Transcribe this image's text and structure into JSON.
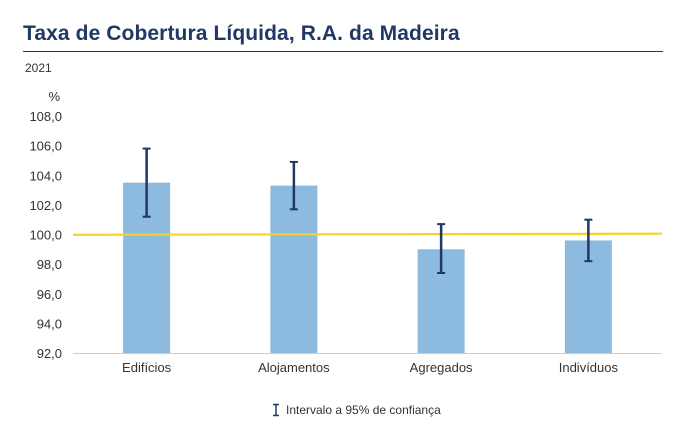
{
  "title": "Taxa de Cobertura Líquida, R.A. da Madeira",
  "subtitle": "2021",
  "chart_data": {
    "type": "bar",
    "title": "Taxa de Cobertura Líquida, R.A. da Madeira",
    "subtitle": "2021",
    "ylabel": "%",
    "ylim": [
      92,
      108
    ],
    "yticks": [
      "108,0",
      "106,0",
      "104,0",
      "102,0",
      "100,0",
      "98,0",
      "96,0",
      "94,0",
      "92,0"
    ],
    "yticks_values": [
      108,
      106,
      104,
      102,
      100,
      98,
      96,
      94,
      92
    ],
    "categories": [
      "Edifícios",
      "Alojamentos",
      "Agregados",
      "Indivíduos"
    ],
    "values": [
      103.5,
      103.3,
      99.0,
      99.6
    ],
    "ci_low": [
      101.2,
      101.7,
      97.4,
      98.2
    ],
    "ci_high": [
      105.8,
      104.9,
      100.7,
      101.0
    ],
    "reference_line": 100.0,
    "legend": "Intervalo a 95% de confiança",
    "colors": {
      "bar": "#8dbbdf",
      "errorbar": "#1f3864",
      "reference": "#f5d327",
      "axis": "#cccccc"
    }
  }
}
